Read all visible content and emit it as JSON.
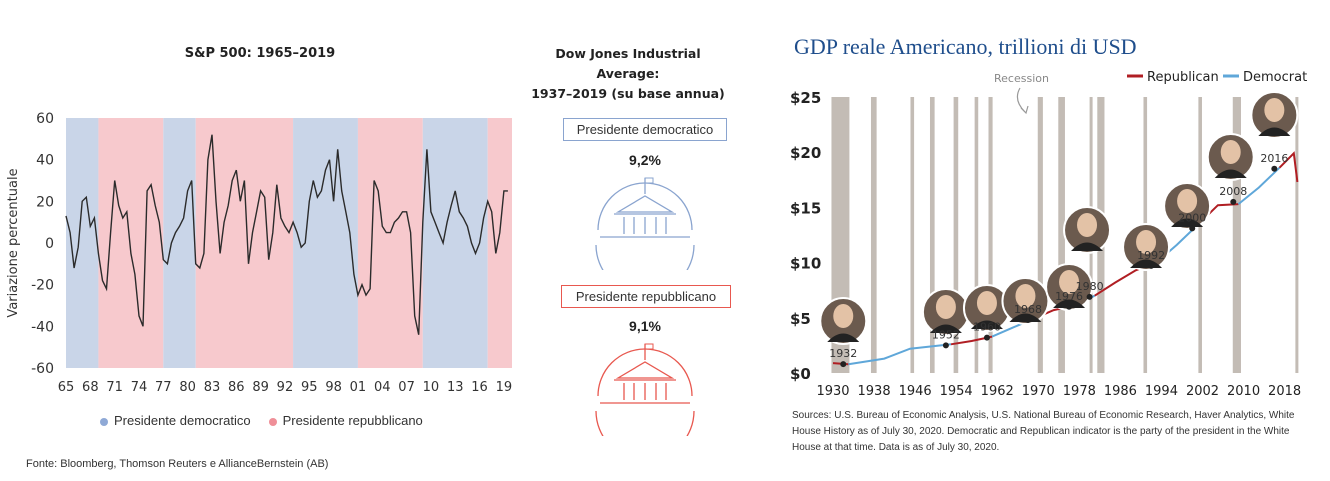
{
  "left": {
    "sp_chart": {
      "title": "S&P 500: 1965–2019",
      "ylabel": "Variazione percentuale",
      "y_ticks": [
        "60",
        "40",
        "20",
        "0",
        "-20",
        "-40",
        "-60"
      ],
      "x_ticks": [
        "65",
        "68",
        "71",
        "74",
        "77",
        "80",
        "83",
        "86",
        "89",
        "92",
        "95",
        "98",
        "01",
        "04",
        "07",
        "10",
        "13",
        "16",
        "19"
      ],
      "legend": {
        "dem": "Presidente democratico",
        "rep": "Presidente repubblicano"
      },
      "colors": {
        "dem": "#c9d5e8",
        "rep": "#f7c9cd",
        "line": "#2b2b2b",
        "dem_dot": "#8fa9d6",
        "rep_dot": "#ef8f98"
      }
    },
    "dj": {
      "title_line1": "Dow Jones Industrial Average:",
      "title_line2": "1937–2019 (su base annua)",
      "dem_label": "Presidente democratico",
      "dem_value": "9,2%",
      "rep_label": "Presidente repubblicano",
      "rep_value": "9,1%",
      "colors": {
        "dem": "#8aa4cf",
        "rep": "#e8584f"
      }
    },
    "source": "Fonte: Bloomberg, Thomson Reuters e AllianceBernstein (AB)"
  },
  "right": {
    "title": "GDP reale Americano, trillioni di USD",
    "recession_label": "Recession",
    "legend": {
      "rep": "Republican",
      "dem": "Democrat"
    },
    "y_ticks": [
      "$25",
      "$20",
      "$15",
      "$10",
      "$5",
      "$0"
    ],
    "x_ticks": [
      "1930",
      "1938",
      "1946",
      "1954",
      "1962",
      "1970",
      "1978",
      "1986",
      "1994",
      "2002",
      "2010",
      "2018"
    ],
    "year_labels": [
      "1932",
      "1952",
      "1960",
      "1968",
      "1976",
      "1980",
      "1992",
      "2000",
      "2008",
      "2016"
    ],
    "source": "Sources: U.S. Bureau of Economic Analysis, U.S. National Bureau of Economic Research, Haver Analytics, White House History as of July 30, 2020. Democratic and Republican indicator is the party of the president in the White House at that time. Data is as of July 30, 2020.",
    "colors": {
      "rep": "#b01e23",
      "dem": "#5fa7d9",
      "recession": "#b9b0a8"
    }
  },
  "chart_data": [
    {
      "type": "line",
      "title": "S&P 500: 1965–2019",
      "ylabel": "Variazione percentuale",
      "ylim": [
        -60,
        60
      ],
      "xlim": [
        1965,
        2020
      ],
      "party_periods": [
        {
          "party": "dem",
          "from": 1965,
          "to": 1969
        },
        {
          "party": "rep",
          "from": 1969,
          "to": 1977
        },
        {
          "party": "dem",
          "from": 1977,
          "to": 1981
        },
        {
          "party": "rep",
          "from": 1981,
          "to": 1993
        },
        {
          "party": "dem",
          "from": 1993,
          "to": 2001
        },
        {
          "party": "rep",
          "from": 2001,
          "to": 2009
        },
        {
          "party": "dem",
          "from": 2009,
          "to": 2017
        },
        {
          "party": "rep",
          "from": 2017,
          "to": 2020
        }
      ],
      "series": [
        {
          "x": [
            1965,
            1965.5,
            1966,
            1966.5,
            1967,
            1967.5,
            1968,
            1968.5,
            1969,
            1969.5,
            1970,
            1970.5,
            1971,
            1971.5,
            1972,
            1972.5,
            1973,
            1973.5,
            1974,
            1974.5,
            1975,
            1975.5,
            1976,
            1976.5,
            1977,
            1977.5,
            1978,
            1978.5,
            1979,
            1979.5,
            1980,
            1980.5,
            1981,
            1981.5,
            1982,
            1982.5,
            1983,
            1983.5,
            1984,
            1984.5,
            1985,
            1985.5,
            1986,
            1986.5,
            1987,
            1987.5,
            1988,
            1988.5,
            1989,
            1989.5,
            1990,
            1990.5,
            1991,
            1991.5,
            1992,
            1992.5,
            1993,
            1993.5,
            1994,
            1994.5,
            1995,
            1995.5,
            1996,
            1996.5,
            1997,
            1997.5,
            1998,
            1998.5,
            1999,
            1999.5,
            2000,
            2000.5,
            2001,
            2001.5,
            2002,
            2002.5,
            2003,
            2003.5,
            2004,
            2004.5,
            2005,
            2005.5,
            2006,
            2006.5,
            2007,
            2007.5,
            2008,
            2008.5,
            2009,
            2009.5,
            2010,
            2010.5,
            2011,
            2011.5,
            2012,
            2012.5,
            2013,
            2013.5,
            2014,
            2014.5,
            2015,
            2015.5,
            2016,
            2016.5,
            2017,
            2017.5,
            2018,
            2018.5,
            2019,
            2019.5
          ],
          "values": [
            13,
            5,
            -12,
            -2,
            20,
            22,
            8,
            12,
            -5,
            -18,
            -22,
            5,
            30,
            18,
            12,
            15,
            -5,
            -15,
            -35,
            -40,
            25,
            28,
            18,
            10,
            -8,
            -10,
            0,
            5,
            8,
            12,
            25,
            30,
            -10,
            -12,
            -5,
            40,
            52,
            20,
            -5,
            10,
            18,
            30,
            35,
            20,
            30,
            -10,
            5,
            15,
            25,
            22,
            -8,
            5,
            28,
            12,
            8,
            5,
            10,
            5,
            -2,
            0,
            20,
            30,
            22,
            25,
            35,
            40,
            20,
            45,
            25,
            15,
            5,
            -15,
            -25,
            -20,
            -25,
            -22,
            30,
            25,
            8,
            5,
            5,
            10,
            12,
            15,
            15,
            5,
            -35,
            -44,
            10,
            45,
            15,
            10,
            5,
            0,
            10,
            18,
            25,
            15,
            12,
            8,
            0,
            -5,
            0,
            12,
            20,
            15,
            -5,
            5,
            25,
            25
          ]
        }
      ]
    },
    {
      "type": "line",
      "title": "GDP reale Americano, trillioni di USD",
      "ylabel": "",
      "ylim": [
        0,
        25
      ],
      "xlim": [
        1930,
        2021
      ],
      "recession_spans": [
        [
          1929.7,
          1933.2
        ],
        [
          1937.4,
          1938.5
        ],
        [
          1945.1,
          1945.8
        ],
        [
          1948.9,
          1949.8
        ],
        [
          1953.5,
          1954.4
        ],
        [
          1957.6,
          1958.3
        ],
        [
          1960.3,
          1961.1
        ],
        [
          1969.9,
          1970.9
        ],
        [
          1973.9,
          1975.2
        ],
        [
          1980,
          1980.5
        ],
        [
          1981.5,
          1982.9
        ],
        [
          1990.5,
          1991.2
        ],
        [
          2001.2,
          2001.9
        ],
        [
          2007.9,
          2009.5
        ],
        [
          2020.1,
          2020.4
        ]
      ],
      "series": [
        {
          "name": "Republican",
          "x": [
            1930,
            1933
          ],
          "values": [
            0.9,
            0.8
          ]
        },
        {
          "name": "Democrat",
          "x": [
            1933,
            1940,
            1945,
            1953
          ],
          "values": [
            0.8,
            1.3,
            2.2,
            2.6
          ]
        },
        {
          "name": "Republican",
          "x": [
            1953,
            1957,
            1961
          ],
          "values": [
            2.6,
            2.9,
            3.3
          ]
        },
        {
          "name": "Democrat",
          "x": [
            1961,
            1965,
            1969
          ],
          "values": [
            3.3,
            4.1,
            4.9
          ]
        },
        {
          "name": "Republican",
          "x": [
            1969,
            1973,
            1977
          ],
          "values": [
            4.9,
            5.7,
            6.1
          ]
        },
        {
          "name": "Democrat",
          "x": [
            1977,
            1981
          ],
          "values": [
            6.1,
            7.0
          ]
        },
        {
          "name": "Republican",
          "x": [
            1981,
            1985,
            1989,
            1993
          ],
          "values": [
            7.0,
            8.2,
            9.3,
            10.0
          ]
        },
        {
          "name": "Democrat",
          "x": [
            1993,
            1997,
            2001
          ],
          "values": [
            10.0,
            11.6,
            13.4
          ]
        },
        {
          "name": "Republican",
          "x": [
            2001,
            2005,
            2009
          ],
          "values": [
            13.4,
            15.2,
            15.3
          ]
        },
        {
          "name": "Democrat",
          "x": [
            2009,
            2013,
            2017
          ],
          "values": [
            15.3,
            16.8,
            18.6
          ]
        },
        {
          "name": "Republican",
          "x": [
            2017,
            2019.8,
            2020.5
          ],
          "values": [
            18.6,
            19.9,
            17.3
          ]
        }
      ],
      "year_markers": [
        [
          1932,
          0.8
        ],
        [
          1952,
          2.5
        ],
        [
          1960,
          3.2
        ],
        [
          1968,
          4.8
        ],
        [
          1976,
          6.0
        ],
        [
          1980,
          6.9
        ],
        [
          1992,
          9.7
        ],
        [
          2000,
          13.1
        ],
        [
          2008,
          15.5
        ],
        [
          2016,
          18.5
        ]
      ]
    }
  ]
}
